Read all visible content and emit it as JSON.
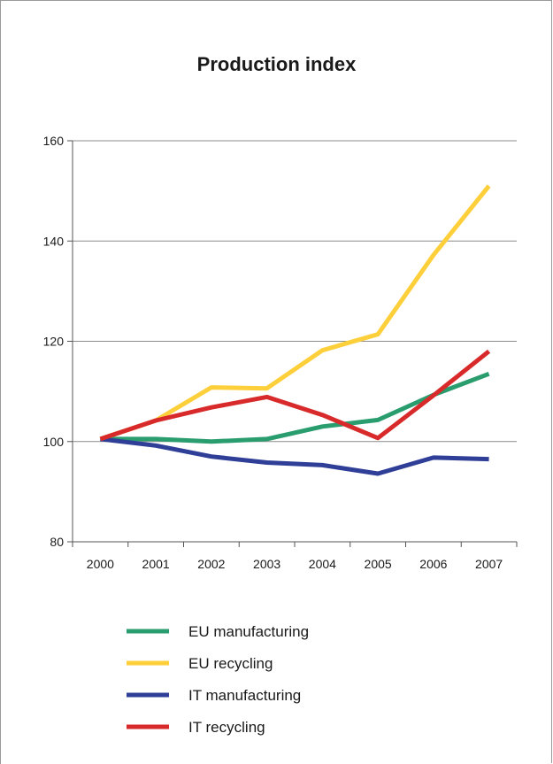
{
  "chart_data": {
    "type": "line",
    "title": "Production index",
    "xlabel": "",
    "ylabel": "",
    "x": [
      "2000",
      "2001",
      "2002",
      "2003",
      "2004",
      "2005",
      "2006",
      "2007"
    ],
    "ylim": [
      80,
      160
    ],
    "yticks": [
      80,
      100,
      120,
      140,
      160
    ],
    "grid": true,
    "legend_position": "bottom",
    "series": [
      {
        "name": "EU manufacturing",
        "color": "#2a9d6f",
        "values": [
          100.5,
          100.5,
          100,
          100.5,
          103,
          104.3,
          109.3,
          113.5
        ]
      },
      {
        "name": "EU recycling",
        "color": "#fdcf3a",
        "values": [
          100.5,
          104.2,
          110.8,
          110.6,
          118.2,
          121.4,
          137.2,
          151
        ]
      },
      {
        "name": "IT manufacturing",
        "color": "#2f3f97",
        "values": [
          100.5,
          99.2,
          97,
          95.8,
          95.3,
          93.6,
          96.8,
          96.5
        ]
      },
      {
        "name": "IT recycling",
        "color": "#d82a2a",
        "values": [
          100.5,
          104.2,
          106.8,
          108.9,
          105.3,
          100.7,
          109.2,
          118
        ]
      }
    ]
  }
}
